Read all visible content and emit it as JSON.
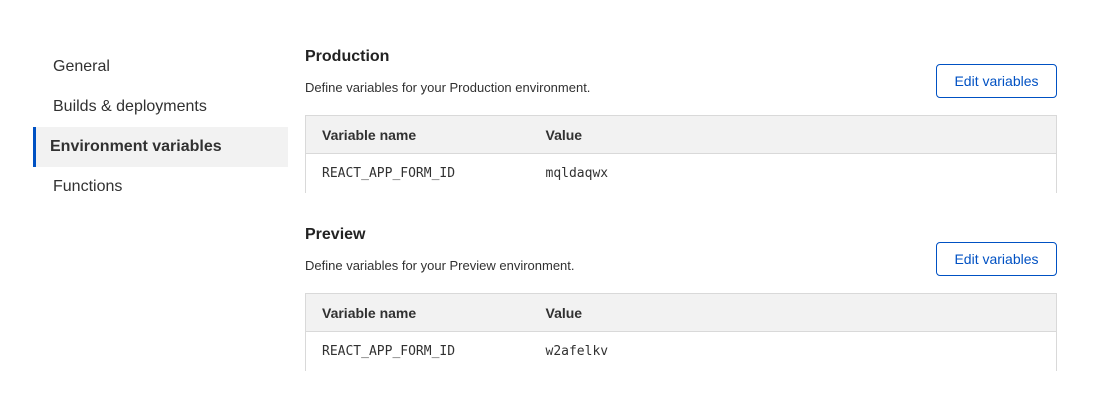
{
  "sidebar": {
    "items": [
      {
        "label": "General"
      },
      {
        "label": "Builds & deployments"
      },
      {
        "label": "Environment variables",
        "active": true
      },
      {
        "label": "Functions"
      }
    ]
  },
  "accent": "#0051c3",
  "sections": [
    {
      "title": "Production",
      "description": "Define variables for your Production environment.",
      "button": "Edit variables",
      "columns": [
        "Variable name",
        "Value"
      ],
      "rows": [
        [
          "REACT_APP_FORM_ID",
          "mqldaqwx"
        ]
      ]
    },
    {
      "title": "Preview",
      "description": "Define variables for your Preview environment.",
      "button": "Edit variables",
      "columns": [
        "Variable name",
        "Value"
      ],
      "rows": [
        [
          "REACT_APP_FORM_ID",
          "w2afelkv"
        ]
      ]
    }
  ]
}
